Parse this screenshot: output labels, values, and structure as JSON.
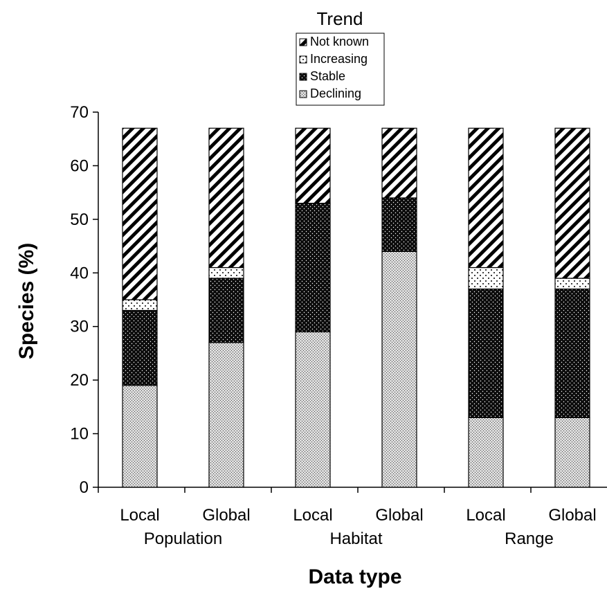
{
  "chart_data": {
    "type": "bar",
    "stacked": true,
    "title": "",
    "xlabel": "Data type",
    "ylabel": "Species (%)",
    "ylim": [
      0,
      70
    ],
    "yticks": [
      0,
      10,
      20,
      30,
      40,
      50,
      60,
      70
    ],
    "grid": false,
    "legend": {
      "title": "Trend",
      "position": "top-center",
      "entries": [
        "Not known",
        "Increasing",
        "Stable",
        "Declining"
      ]
    },
    "categories": [
      "Local",
      "Global",
      "Local",
      "Global",
      "Local",
      "Global"
    ],
    "groups": [
      {
        "label": "Population",
        "categories": [
          0,
          1
        ]
      },
      {
        "label": "Habitat",
        "categories": [
          2,
          3
        ]
      },
      {
        "label": "Range",
        "categories": [
          4,
          5
        ]
      }
    ],
    "series": [
      {
        "name": "Declining",
        "pattern": "crosshatch",
        "values": [
          19,
          27,
          29,
          44,
          13,
          13
        ]
      },
      {
        "name": "Stable",
        "pattern": "dark-dots",
        "values": [
          14,
          12,
          24,
          10,
          24,
          24
        ]
      },
      {
        "name": "Increasing",
        "pattern": "light-dots",
        "values": [
          2,
          2,
          0,
          0,
          4,
          2
        ]
      },
      {
        "name": "Not known",
        "pattern": "diagonal-stripes",
        "values": [
          32,
          26,
          14,
          13,
          26,
          28
        ]
      }
    ]
  }
}
